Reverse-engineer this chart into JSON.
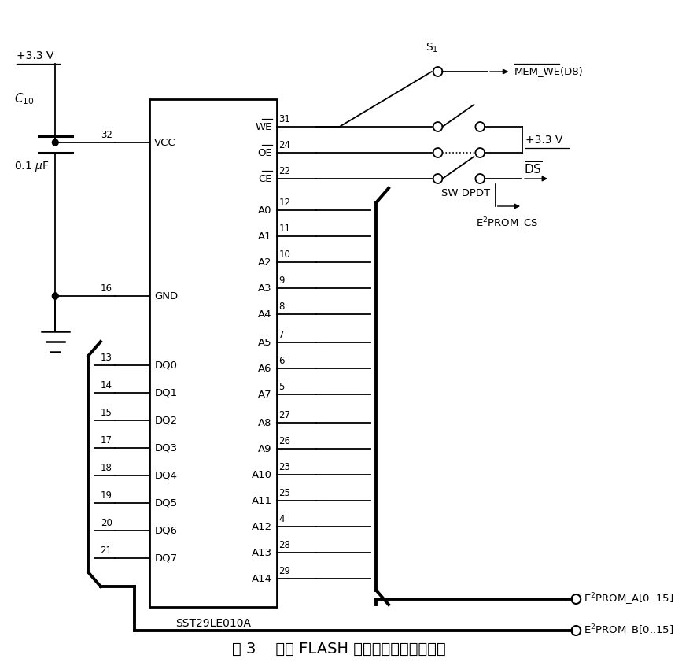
{
  "title": "图 3    扩展 FLASH 存储器硬件电路原理图",
  "chip_label": "SST29LE010A",
  "left_pins_vcc": {
    "name": "VCC",
    "pin": "32"
  },
  "left_pins_gnd": {
    "name": "GND",
    "pin": "16"
  },
  "dq_pins": [
    {
      "name": "DQ0",
      "pin": "13"
    },
    {
      "name": "DQ1",
      "pin": "14"
    },
    {
      "name": "DQ2",
      "pin": "15"
    },
    {
      "name": "DQ3",
      "pin": "17"
    },
    {
      "name": "DQ4",
      "pin": "18"
    },
    {
      "name": "DQ5",
      "pin": "19"
    },
    {
      "name": "DQ6",
      "pin": "20"
    },
    {
      "name": "DQ7",
      "pin": "21"
    }
  ],
  "right_pins": [
    {
      "name": "WE",
      "pin": "31",
      "overline": true
    },
    {
      "name": "OE",
      "pin": "24",
      "overline": true
    },
    {
      "name": "CE",
      "pin": "22",
      "overline": true
    },
    {
      "name": "A0",
      "pin": "12",
      "overline": false
    },
    {
      "name": "A1",
      "pin": "11",
      "overline": false
    },
    {
      "name": "A2",
      "pin": "10",
      "overline": false
    },
    {
      "name": "A3",
      "pin": "9",
      "overline": false
    },
    {
      "name": "A4",
      "pin": "8",
      "overline": false
    },
    {
      "name": "A5",
      "pin": "7",
      "overline": false
    },
    {
      "name": "A6",
      "pin": "6",
      "overline": false
    },
    {
      "name": "A7",
      "pin": "5",
      "overline": false
    },
    {
      "name": "A8",
      "pin": "27",
      "overline": false
    },
    {
      "name": "A9",
      "pin": "26",
      "overline": false
    },
    {
      "name": "A10",
      "pin": "23",
      "overline": false
    },
    {
      "name": "A11",
      "pin": "25",
      "overline": false
    },
    {
      "name": "A12",
      "pin": "4",
      "overline": false
    },
    {
      "name": "A13",
      "pin": "28",
      "overline": false
    },
    {
      "name": "A14",
      "pin": "29",
      "overline": false
    }
  ]
}
